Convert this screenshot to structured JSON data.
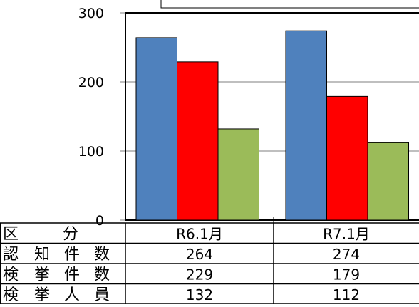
{
  "chart_data": {
    "type": "bar",
    "categories": [
      "R6.1月",
      "R7.1月"
    ],
    "series": [
      {
        "name": "認知件数",
        "values": [
          264,
          274
        ],
        "color": "#4F81BD"
      },
      {
        "name": "検挙件数",
        "values": [
          229,
          179
        ],
        "color": "#FF0000"
      },
      {
        "name": "検挙人員",
        "values": [
          132,
          112
        ],
        "color": "#9BBB59"
      }
    ],
    "ylim": [
      0,
      300
    ],
    "yticks": [
      0,
      100,
      200,
      300
    ],
    "grid": true,
    "table": {
      "header_label": "区　　分",
      "rows": [
        {
          "label": "認知件数",
          "chars": [
            "認",
            "知",
            "件",
            "数"
          ],
          "values": [
            "264",
            "274"
          ]
        },
        {
          "label": "検挙件数",
          "chars": [
            "検",
            "挙",
            "件",
            "数"
          ],
          "values": [
            "229",
            "179"
          ]
        },
        {
          "label": "検挙人員",
          "chars": [
            "検",
            "挙",
            "人",
            "員"
          ],
          "values": [
            "132",
            "112"
          ]
        }
      ],
      "header_chars": [
        "区",
        "分"
      ]
    }
  }
}
